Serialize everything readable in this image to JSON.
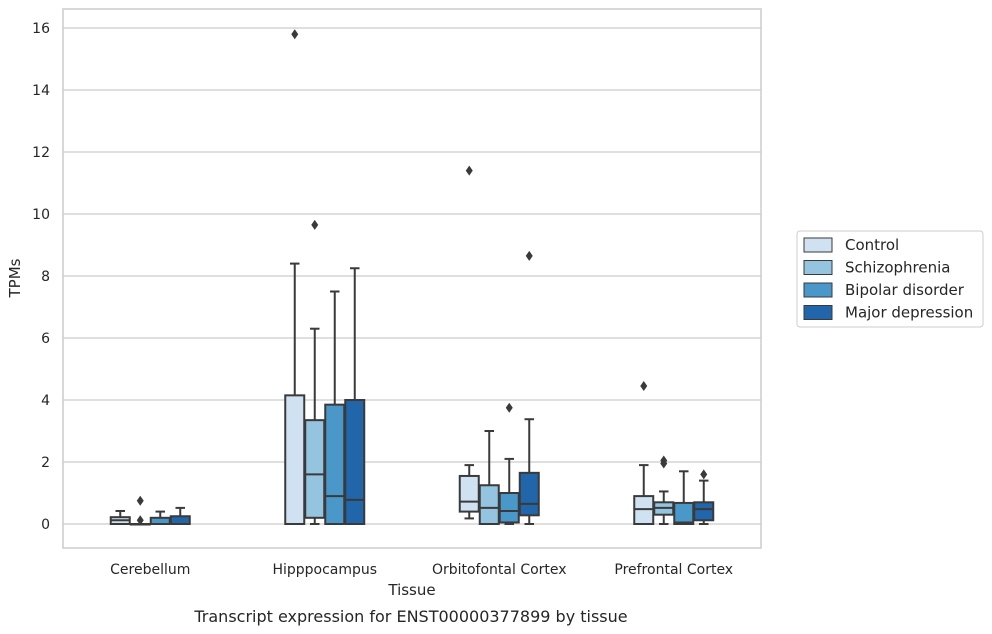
{
  "chart_data": {
    "type": "box",
    "title": "Transcript expression for ENST00000377899 by tissue",
    "xlabel": "Tissue",
    "ylabel": "TPMs",
    "ylim": [
      -0.75,
      16.6
    ],
    "yticks": [
      0,
      2,
      4,
      6,
      8,
      10,
      12,
      14,
      16
    ],
    "grid": true,
    "legend_position": "right",
    "categories": [
      "Cerebellum",
      "Hipppocampus",
      "Orbitofontal Cortex",
      "Prefrontal Cortex"
    ],
    "series": [
      {
        "name": "Control",
        "color": "#d0e1f2",
        "boxes": [
          {
            "whisker_low": 0.0,
            "q1": 0.0,
            "median": 0.12,
            "q3": 0.22,
            "whisker_high": 0.42,
            "outliers": []
          },
          {
            "whisker_low": 0.0,
            "q1": 0.0,
            "median": 0.0,
            "q3": 4.15,
            "whisker_high": 8.4,
            "outliers": [
              15.8
            ]
          },
          {
            "whisker_low": 0.18,
            "q1": 0.4,
            "median": 0.72,
            "q3": 1.55,
            "whisker_high": 1.9,
            "outliers": [
              11.4
            ]
          },
          {
            "whisker_low": 0.0,
            "q1": 0.0,
            "median": 0.48,
            "q3": 0.9,
            "whisker_high": 1.9,
            "outliers": [
              4.45
            ]
          }
        ]
      },
      {
        "name": "Schizophrenia",
        "color": "#94c4df",
        "boxes": [
          {
            "whisker_low": 0.0,
            "q1": 0.0,
            "median": 0.0,
            "q3": 0.0,
            "whisker_high": 0.0,
            "outliers": [
              0.75,
              0.12
            ]
          },
          {
            "whisker_low": 0.0,
            "q1": 0.2,
            "median": 1.6,
            "q3": 3.35,
            "whisker_high": 6.3,
            "outliers": [
              9.65
            ]
          },
          {
            "whisker_low": 0.0,
            "q1": 0.0,
            "median": 0.52,
            "q3": 1.25,
            "whisker_high": 3.0,
            "outliers": []
          },
          {
            "whisker_low": 0.0,
            "q1": 0.3,
            "median": 0.52,
            "q3": 0.7,
            "whisker_high": 1.05,
            "outliers": [
              2.05,
              1.95
            ]
          }
        ]
      },
      {
        "name": "Bipolar disorder",
        "color": "#4a98c9",
        "boxes": [
          {
            "whisker_low": 0.0,
            "q1": 0.0,
            "median": 0.0,
            "q3": 0.2,
            "whisker_high": 0.4,
            "outliers": []
          },
          {
            "whisker_low": 0.0,
            "q1": 0.0,
            "median": 0.9,
            "q3": 3.85,
            "whisker_high": 7.5,
            "outliers": []
          },
          {
            "whisker_low": 0.0,
            "q1": 0.05,
            "median": 0.42,
            "q3": 1.0,
            "whisker_high": 2.1,
            "outliers": [
              3.75
            ]
          },
          {
            "whisker_low": 0.0,
            "q1": 0.0,
            "median": 0.05,
            "q3": 0.68,
            "whisker_high": 1.7,
            "outliers": []
          }
        ]
      },
      {
        "name": "Major depression",
        "color": "#2165ab",
        "boxes": [
          {
            "whisker_low": 0.0,
            "q1": 0.0,
            "median": 0.0,
            "q3": 0.25,
            "whisker_high": 0.52,
            "outliers": []
          },
          {
            "whisker_low": 0.0,
            "q1": 0.0,
            "median": 0.78,
            "q3": 4.0,
            "whisker_high": 8.25,
            "outliers": []
          },
          {
            "whisker_low": 0.0,
            "q1": 0.28,
            "median": 0.65,
            "q3": 1.65,
            "whisker_high": 3.38,
            "outliers": [
              8.65
            ]
          },
          {
            "whisker_low": 0.0,
            "q1": 0.12,
            "median": 0.48,
            "q3": 0.7,
            "whisker_high": 1.4,
            "outliers": [
              1.6
            ]
          }
        ]
      }
    ]
  }
}
